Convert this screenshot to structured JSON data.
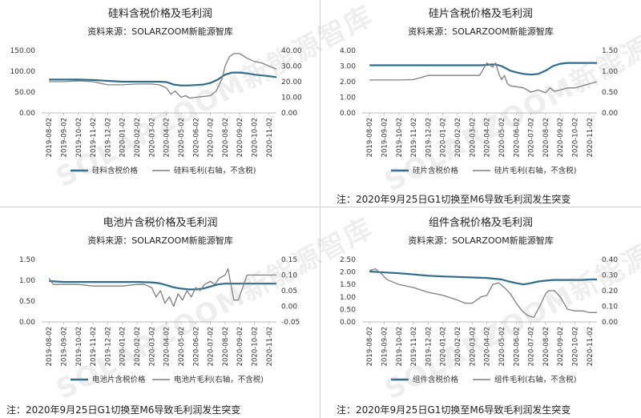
{
  "watermark": "SOLARZOOM新能源智库",
  "chart_data": [
    {
      "type": "line",
      "title": "硅料含税价格及毛利润",
      "subtitle": "资料来源：SOLARZOOM新能源智库",
      "x_ticks": [
        "2019-08-02",
        "2019-09-02",
        "2019-10-02",
        "2019-11-02",
        "2019-12-02",
        "2020-01-02",
        "2020-02-02",
        "2020-03-02",
        "2020-04-02",
        "2020-05-02",
        "2020-06-02",
        "2020-07-02",
        "2020-08-02",
        "2020-09-02",
        "2020-10-02",
        "2020-11-02"
      ],
      "left_ticks": [
        "0.00",
        "50.00",
        "100.00",
        "150.00"
      ],
      "right_ticks": [
        "0.00",
        "10.00",
        "20.00",
        "30.00",
        "40.00"
      ],
      "ylim_left": [
        0,
        150
      ],
      "ylim_right": [
        0,
        40
      ],
      "legend_position": "bottom",
      "series": [
        {
          "name": "硅料含税价格",
          "axis": "left",
          "color": "#2e6c8e",
          "width": 2.2,
          "x": [
            0,
            1,
            2,
            3,
            4,
            5,
            6,
            7,
            7.5,
            8,
            8.5,
            9,
            9.5,
            10,
            10.5,
            11,
            11.5,
            12,
            12.5,
            13,
            13.5,
            14,
            14.5,
            15,
            15.5
          ],
          "y": [
            80,
            80,
            80,
            79,
            77,
            75,
            75,
            75,
            75,
            74,
            68,
            66,
            66,
            67,
            68,
            72,
            80,
            92,
            97,
            97,
            95,
            92,
            90,
            88,
            86
          ]
        },
        {
          "name": "硅料毛利(右轴，不含税)",
          "axis": "right",
          "color": "#7f7f7f",
          "width": 1.3,
          "x": [
            0,
            1,
            2,
            3,
            4,
            5,
            6,
            7,
            7.5,
            8,
            8.3,
            8.6,
            9,
            9.3,
            9.6,
            10,
            10.5,
            11,
            11.4,
            11.8,
            12,
            12.3,
            12.6,
            13,
            13.5,
            14,
            14.5,
            15,
            15.5
          ],
          "y": [
            20,
            20,
            20.5,
            20,
            18,
            18,
            18.5,
            18.5,
            18,
            16,
            12,
            14,
            10,
            11,
            9.5,
            10,
            10.5,
            11,
            14,
            22,
            30,
            36,
            38,
            38,
            35,
            33,
            32,
            30,
            28
          ]
        }
      ]
    },
    {
      "type": "line",
      "title": "硅片含税价格及毛利润",
      "subtitle": "资料来源：SOLARZOOM新能源智库",
      "x_ticks": [
        "2019-08-02",
        "2019-09-02",
        "2019-10-02",
        "2019-11-02",
        "2019-12-02",
        "2020-01-02",
        "2020-02-02",
        "2020-03-02",
        "2020-04-02",
        "2020-05-02",
        "2020-06-02",
        "2020-07-02",
        "2020-08-02",
        "2020-09-02",
        "2020-10-02",
        "2020-11-02"
      ],
      "left_ticks": [
        "0.00",
        "1.00",
        "2.00",
        "3.00",
        "4.00"
      ],
      "right_ticks": [
        "0.00",
        "0.50",
        "1.00",
        "1.50"
      ],
      "ylim_left": [
        0,
        4
      ],
      "ylim_right": [
        0,
        1.5
      ],
      "legend_position": "bottom",
      "series": [
        {
          "name": "硅片含税价格",
          "axis": "left",
          "color": "#2e6c8e",
          "width": 2.2,
          "x": [
            0,
            1,
            2,
            3,
            4,
            5,
            6,
            7,
            7.5,
            8,
            8.3,
            8.6,
            9,
            9.3,
            9.6,
            10,
            10.5,
            11,
            11.5,
            12,
            12.5,
            13,
            13.5,
            14,
            14.5,
            15,
            15.5
          ],
          "y": [
            3.05,
            3.05,
            3.05,
            3.05,
            3.05,
            3.05,
            3.05,
            3.05,
            3.05,
            3.07,
            3.1,
            3.1,
            3.0,
            2.85,
            2.7,
            2.6,
            2.5,
            2.45,
            2.5,
            2.7,
            3.0,
            3.15,
            3.2,
            3.2,
            3.2,
            3.2,
            3.2
          ]
        },
        {
          "name": "硅片毛利(右轴，不含税)",
          "axis": "right",
          "color": "#7f7f7f",
          "width": 1.3,
          "x": [
            0,
            1,
            2,
            3,
            4,
            5,
            6,
            7,
            7.5,
            8,
            8.2,
            8.4,
            8.6,
            8.8,
            9,
            9.2,
            9.4,
            9.6,
            10,
            10.5,
            11,
            11.5,
            12,
            12.3,
            12.6,
            13,
            13.5,
            14,
            14.5,
            15,
            15.5
          ],
          "y": [
            0.79,
            0.79,
            0.79,
            0.8,
            0.9,
            0.9,
            0.9,
            0.9,
            0.9,
            1.2,
            1.15,
            1.1,
            1.2,
            0.95,
            0.8,
            0.9,
            0.7,
            0.65,
            0.63,
            0.6,
            0.5,
            0.55,
            0.48,
            0.6,
            0.52,
            0.55,
            0.6,
            0.6,
            0.65,
            0.7,
            0.75
          ]
        }
      ]
    },
    {
      "type": "line",
      "title": "电池片含税价格及毛利润",
      "subtitle": "资料来源：SOLARZOOM新能源智库",
      "x_ticks": [
        "2019-08-02",
        "2019-09-02",
        "2019-10-02",
        "2019-11-02",
        "2019-12-02",
        "2020-01-02",
        "2020-02-02",
        "2020-03-02",
        "2020-04-02",
        "2020-05-02",
        "2020-06-02",
        "2020-07-02",
        "2020-08-02",
        "2020-09-02",
        "2020-10-02",
        "2020-11-02"
      ],
      "left_ticks": [
        "0.00",
        "0.50",
        "1.00",
        "1.50"
      ],
      "right_ticks": [
        "-0.05",
        "0.00",
        "0.05",
        "0.10",
        "0.15"
      ],
      "ylim_left": [
        0,
        1.5
      ],
      "ylim_right": [
        -0.05,
        0.15
      ],
      "legend_position": "bottom",
      "series": [
        {
          "name": "电池片含税价格",
          "axis": "left",
          "color": "#2e6c8e",
          "width": 2.2,
          "x": [
            0,
            1,
            2,
            3,
            4,
            5,
            6,
            7,
            7.5,
            8,
            8.5,
            9,
            9.5,
            10,
            10.5,
            11,
            11.5,
            12,
            12.5,
            13,
            13.5,
            14,
            14.5,
            15,
            15.5
          ],
          "y": [
            0.98,
            0.96,
            0.96,
            0.96,
            0.96,
            0.96,
            0.96,
            0.95,
            0.93,
            0.88,
            0.83,
            0.8,
            0.78,
            0.78,
            0.8,
            0.85,
            0.9,
            0.92,
            0.92,
            0.92,
            0.92,
            0.92,
            0.92,
            0.92,
            0.92
          ]
        },
        {
          "name": "电池片毛利(右轴，不含税)",
          "axis": "right",
          "color": "#7f7f7f",
          "width": 1.3,
          "x": [
            0,
            0.3,
            1,
            2,
            3,
            4,
            5,
            6,
            6.5,
            7,
            7.3,
            7.6,
            7.9,
            8.2,
            8.5,
            8.8,
            9.1,
            9.4,
            9.7,
            10,
            10.3,
            10.6,
            11,
            11.3,
            11.6,
            12,
            12.2,
            12.4,
            12.6,
            12.9,
            13.5,
            14,
            14.5,
            15,
            15.5
          ],
          "y": [
            0.09,
            0.07,
            0.07,
            0.07,
            0.065,
            0.065,
            0.065,
            0.07,
            0.07,
            0.06,
            0.03,
            0.05,
            0.01,
            0.03,
            0.0,
            0.04,
            0.02,
            0.05,
            0.03,
            0.06,
            0.05,
            0.07,
            0.08,
            0.07,
            0.09,
            0.1,
            0.12,
            0.07,
            0.02,
            0.02,
            0.1,
            0.1,
            0.1,
            0.1,
            0.1
          ]
        }
      ]
    },
    {
      "type": "line",
      "title": "组件含税价格及毛利润",
      "subtitle": "资料来源：SOLARZOOM新能源智库",
      "x_ticks": [
        "2019-08-02",
        "2019-09-02",
        "2019-10-02",
        "2019-11-02",
        "2019-12-02",
        "2020-01-02",
        "2020-02-02",
        "2020-03-02",
        "2020-04-02",
        "2020-05-02",
        "2020-06-02",
        "2020-07-02",
        "2020-08-02",
        "2020-09-02",
        "2020-10-02",
        "2020-11-02"
      ],
      "left_ticks": [
        "0.00",
        "0.50",
        "1.00",
        "1.50",
        "2.00",
        "2.50"
      ],
      "right_ticks": [
        "0.00",
        "0.10",
        "0.20",
        "0.30",
        "0.40"
      ],
      "ylim_left": [
        0,
        2.5
      ],
      "ylim_right": [
        0,
        0.4
      ],
      "legend_position": "bottom",
      "series": [
        {
          "name": "组件含税价格",
          "axis": "left",
          "color": "#2e6c8e",
          "width": 2.2,
          "x": [
            0,
            1,
            2,
            3,
            4,
            5,
            6,
            7,
            8,
            9,
            9.5,
            10,
            10.5,
            11,
            11.5,
            12,
            12.5,
            13,
            13.5,
            14,
            14.5,
            15,
            15.5
          ],
          "y": [
            2.02,
            1.98,
            1.95,
            1.9,
            1.85,
            1.82,
            1.8,
            1.78,
            1.76,
            1.7,
            1.62,
            1.55,
            1.5,
            1.55,
            1.62,
            1.65,
            1.68,
            1.68,
            1.68,
            1.68,
            1.68,
            1.7,
            1.7
          ]
        },
        {
          "name": "组件毛利(右轴，不含税)",
          "axis": "right",
          "color": "#7f7f7f",
          "width": 1.3,
          "x": [
            0,
            0.4,
            0.8,
            1.2,
            2,
            3,
            4,
            5,
            6,
            6.5,
            7,
            7.3,
            7.6,
            8,
            8.4,
            8.8,
            9.2,
            9.6,
            10,
            10.4,
            10.8,
            11.2,
            11.6,
            12,
            12.2,
            12.6,
            13,
            13.5,
            14,
            14.5,
            15,
            15.5
          ],
          "y": [
            0.33,
            0.34,
            0.31,
            0.27,
            0.24,
            0.22,
            0.19,
            0.17,
            0.14,
            0.12,
            0.12,
            0.14,
            0.16,
            0.17,
            0.24,
            0.25,
            0.22,
            0.18,
            0.12,
            0.07,
            0.04,
            0.03,
            0.1,
            0.18,
            0.2,
            0.2,
            0.16,
            0.08,
            0.07,
            0.07,
            0.06,
            0.06
          ]
        }
      ]
    }
  ],
  "notes": [
    "注：2020年9月25日G1切换至M6导致毛利润发生突变",
    "注：2020年9月25日G1切换至M6导致毛利润发生突变",
    "注：2020年9月25日G1切换至M6导致毛利润发生突变"
  ]
}
